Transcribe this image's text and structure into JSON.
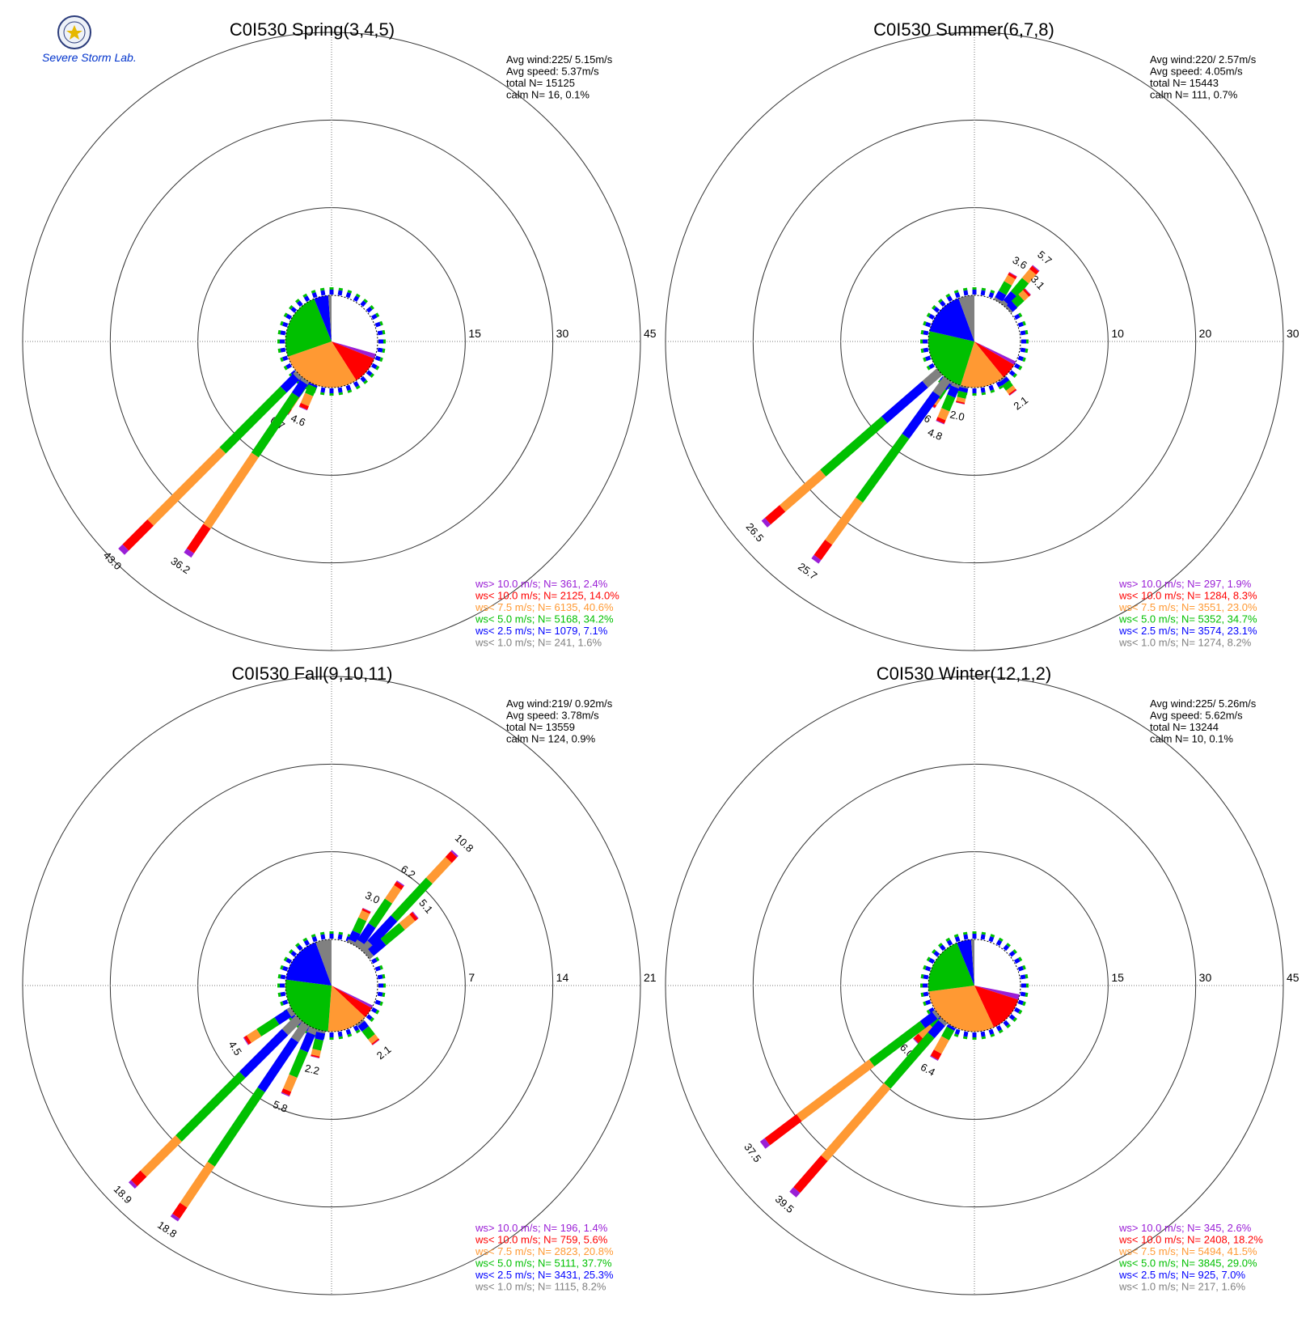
{
  "logo": {
    "lab_text": "Severe Storm Lab.",
    "seal_icon": "university-seal-icon"
  },
  "colors": {
    "gt10": "#9a1fd6",
    "lt10": "#ff0000",
    "lt7_5": "#ff9933",
    "lt5": "#00c000",
    "lt2_5": "#0000ff",
    "lt1": "#808080"
  },
  "chart_data": [
    {
      "type": "wind-rose",
      "title": "C0I530 Spring(3,4,5)",
      "stats": {
        "avg_wind": "Avg wind:225/ 5.15m/s",
        "avg_speed": "Avg speed: 5.37m/s",
        "total": "total N=      15125",
        "calm": "calm N=     16,   0.1%"
      },
      "ring_values": [
        15,
        30,
        45
      ],
      "ring_labels": [
        "15",
        "30",
        "45"
      ],
      "max": 45,
      "pie": [
        41.6,
        2.4,
        14.0,
        40.6,
        34.2,
        7.1,
        1.6
      ],
      "bars": [
        {
          "dir": 213.5,
          "value": 6.7,
          "label": "6.7"
        },
        {
          "dir": 225,
          "value": 43.0,
          "label": "43.0"
        },
        {
          "dir": 214,
          "value": 36.2,
          "label": "36.2"
        },
        {
          "dir": 203,
          "value": 4.6,
          "label": "4.6"
        }
      ],
      "legend": [
        {
          "key": "gt10",
          "text": "ws> 10.0 m/s; N=   361,  2.4%"
        },
        {
          "key": "lt10",
          "text": "ws< 10.0 m/s; N=  2125, 14.0%"
        },
        {
          "key": "lt7_5",
          "text": "ws<  7.5 m/s; N=  6135, 40.6%"
        },
        {
          "key": "lt5",
          "text": "ws<  5.0 m/s; N=  5168, 34.2%"
        },
        {
          "key": "lt2_5",
          "text": "ws<  2.5 m/s; N=  1079,  7.1%"
        },
        {
          "key": "lt1",
          "text": "ws<  1.0 m/s; N=   241,  1.6%"
        }
      ]
    },
    {
      "type": "wind-rose",
      "title": "C0I530 Summer(6,7,8)",
      "stats": {
        "avg_wind": "Avg wind:220/ 2.57m/s",
        "avg_speed": "Avg speed: 4.05m/s",
        "total": "total N=      15443",
        "calm": "calm N=    111,   0.7%"
      },
      "ring_values": [
        10,
        20,
        30
      ],
      "ring_labels": [
        "10",
        "20",
        "30"
      ],
      "max": 30,
      "pie": [
        47.0,
        1.9,
        8.3,
        23.0,
        34.7,
        23.1,
        8.2
      ],
      "bars": [
        {
          "dir": 214,
          "value": 3.6,
          "label": "3.6"
        },
        {
          "dir": 229,
          "value": 26.5,
          "label": "26.5"
        },
        {
          "dir": 216,
          "value": 25.7,
          "label": "25.7"
        },
        {
          "dir": 203,
          "value": 4.8,
          "label": "4.8"
        },
        {
          "dir": 193,
          "value": 2.0,
          "label": "2.0"
        },
        {
          "dir": 143,
          "value": 2.1,
          "label": "2.1"
        },
        {
          "dir": 30,
          "value": 3.6,
          "label": "3.6"
        },
        {
          "dir": 40,
          "value": 5.7,
          "label": "5.7"
        },
        {
          "dir": 47,
          "value": 3.1,
          "label": "3.1"
        }
      ],
      "legend": [
        {
          "key": "gt10",
          "text": "ws> 10.0 m/s; N=   297,  1.9%"
        },
        {
          "key": "lt10",
          "text": "ws< 10.0 m/s; N=  1284,  8.3%"
        },
        {
          "key": "lt7_5",
          "text": "ws<  7.5 m/s; N=  3551, 23.0%"
        },
        {
          "key": "lt5",
          "text": "ws<  5.0 m/s; N=  5352, 34.7%"
        },
        {
          "key": "lt2_5",
          "text": "ws<  2.5 m/s; N=  3574, 23.1%"
        },
        {
          "key": "lt1",
          "text": "ws<  1.0 m/s; N=  1274,  8.2%"
        }
      ]
    },
    {
      "type": "wind-rose",
      "title": "C0I530 Fall(9,10,11)",
      "stats": {
        "avg_wind": "Avg wind:219/ 0.92m/s",
        "avg_speed": "Avg speed: 3.78m/s",
        "total": "total N=      13559",
        "calm": "calm N=    124,   0.9%"
      },
      "ring_values": [
        7,
        14,
        21
      ],
      "ring_labels": [
        "7",
        "14",
        "21"
      ],
      "max": 21,
      "pie": [
        47.0,
        1.4,
        5.6,
        20.8,
        37.7,
        25.3,
        8.2
      ],
      "bars": [
        {
          "dir": 237,
          "value": 4.5,
          "label": "4.5"
        },
        {
          "dir": 225,
          "value": 18.9,
          "label": "18.9"
        },
        {
          "dir": 214,
          "value": 18.8,
          "label": "18.8"
        },
        {
          "dir": 203,
          "value": 5.8,
          "label": "5.8"
        },
        {
          "dir": 193,
          "value": 2.2,
          "label": "2.2"
        },
        {
          "dir": 142,
          "value": 2.1,
          "label": "2.1"
        },
        {
          "dir": 25,
          "value": 3.0,
          "label": "3.0"
        },
        {
          "dir": 34,
          "value": 6.2,
          "label": "6.2"
        },
        {
          "dir": 43,
          "value": 10.8,
          "label": "10.8"
        },
        {
          "dir": 50,
          "value": 5.1,
          "label": "5.1"
        }
      ],
      "legend": [
        {
          "key": "gt10",
          "text": "ws> 10.0 m/s; N=   196,  1.4%"
        },
        {
          "key": "lt10",
          "text": "ws< 10.0 m/s; N=   759,  5.6%"
        },
        {
          "key": "lt7_5",
          "text": "ws<  7.5 m/s; N=  2823, 20.8%"
        },
        {
          "key": "lt5",
          "text": "ws<  5.0 m/s; N=  5111, 37.7%"
        },
        {
          "key": "lt2_5",
          "text": "ws<  2.5 m/s; N=  3431, 25.3%"
        },
        {
          "key": "lt1",
          "text": "ws<  1.0 m/s; N=  1115,  8.2%"
        }
      ]
    },
    {
      "type": "wind-rose",
      "title": "C0I530 Winter(12,1,2)",
      "stats": {
        "avg_wind": "Avg wind:225/ 5.26m/s",
        "avg_speed": "Avg speed: 5.62m/s",
        "total": "total N=      13244",
        "calm": "calm N=     10,   0.1%"
      },
      "ring_values": [
        15,
        30,
        45
      ],
      "ring_labels": [
        "15",
        "30",
        "45"
      ],
      "max": 45,
      "pie": [
        39.0,
        2.6,
        18.2,
        41.5,
        29.0,
        7.0,
        1.6
      ],
      "bars": [
        {
          "dir": 226,
          "value": 6.0,
          "label": "6.0"
        },
        {
          "dir": 233,
          "value": 37.5,
          "label": "37.5"
        },
        {
          "dir": 221,
          "value": 39.5,
          "label": "39.5"
        },
        {
          "dir": 209,
          "value": 6.4,
          "label": "6.4"
        }
      ],
      "legend": [
        {
          "key": "gt10",
          "text": "ws> 10.0 m/s; N=   345,  2.6%"
        },
        {
          "key": "lt10",
          "text": "ws< 10.0 m/s; N=  2408, 18.2%"
        },
        {
          "key": "lt7_5",
          "text": "ws<  7.5 m/s; N=  5494, 41.5%"
        },
        {
          "key": "lt5",
          "text": "ws<  5.0 m/s; N=  3845, 29.0%"
        },
        {
          "key": "lt2_5",
          "text": "ws<  2.5 m/s; N=   925,  7.0%"
        },
        {
          "key": "lt1",
          "text": "ws<  1.0 m/s; N=   217,  1.6%"
        }
      ]
    }
  ]
}
